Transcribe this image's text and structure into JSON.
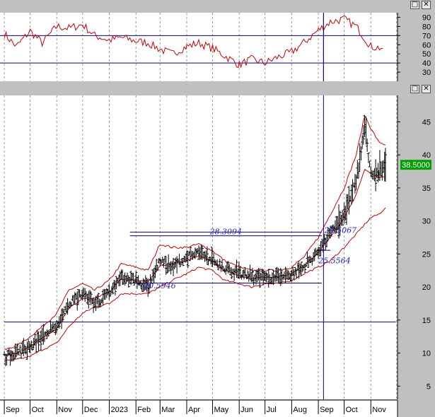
{
  "window": {
    "buttons": [
      {
        "pane": "rsi",
        "kind": "restore",
        "glyph": "□"
      },
      {
        "pane": "rsi",
        "kind": "close",
        "glyph": "✕"
      },
      {
        "pane": "price",
        "kind": "restore",
        "glyph": "□"
      },
      {
        "pane": "price",
        "kind": "close",
        "glyph": "✕"
      }
    ]
  },
  "colors": {
    "background": "#ffffff",
    "frame": "#c0c0c0",
    "price_bars": "#000000",
    "bands": "#cc0000",
    "rsi_line": "#cc0000",
    "horizontal_lines": "#000099",
    "annotation_text": "#2222cc",
    "last_price_bg": "#00a000",
    "last_price_text": "#ffffff",
    "month_gridlines": "#9a9a9a"
  },
  "chart_data": [
    {
      "type": "line",
      "indicator": "RSI",
      "ylim": [
        20,
        95
      ],
      "y_ticks": [
        30,
        40,
        50,
        60,
        70,
        80,
        90
      ],
      "reference_levels": [
        40,
        70
      ],
      "grid": "vertical dashed monthly",
      "series": [
        {
          "x": [
            "2022-09-01",
            "2022-09-15",
            "2022-10-01",
            "2022-10-15",
            "2022-11-01",
            "2022-11-15",
            "2022-12-01",
            "2022-12-15",
            "2023-01-01",
            "2023-01-15",
            "2023-02-01",
            "2023-02-15",
            "2023-03-01",
            "2023-03-15",
            "2023-04-01",
            "2023-04-15",
            "2023-05-01",
            "2023-05-15",
            "2023-06-01",
            "2023-06-15",
            "2023-07-01",
            "2023-07-15",
            "2023-08-01",
            "2023-08-15",
            "2023-09-01",
            "2023-09-15",
            "2023-10-01",
            "2023-10-15",
            "2023-11-01",
            "2023-11-15"
          ],
          "values": [
            72,
            58,
            75,
            62,
            80,
            78,
            82,
            70,
            65,
            68,
            64,
            62,
            55,
            50,
            58,
            62,
            56,
            48,
            38,
            44,
            40,
            46,
            52,
            62,
            76,
            85,
            88,
            80,
            58,
            56
          ]
        }
      ]
    },
    {
      "type": "candlestick",
      "ylim": [
        3,
        49
      ],
      "y_ticks": [
        5,
        10,
        15,
        20,
        25,
        30,
        35,
        40,
        45
      ],
      "x_tick_labels": [
        "Sep",
        "Oct",
        "Nov",
        "Dec",
        "2023",
        "Feb",
        "Mar",
        "Apr",
        "May",
        "Jun",
        "Jul",
        "Aug",
        "Sep",
        "Oct",
        "Nov"
      ],
      "grid": "vertical dashed monthly",
      "last_price": "38.5000",
      "price_path": {
        "x": [
          "2022-09-01",
          "2022-09-15",
          "2022-10-01",
          "2022-10-15",
          "2022-11-01",
          "2022-11-15",
          "2022-12-01",
          "2022-12-15",
          "2023-01-01",
          "2023-01-15",
          "2023-02-01",
          "2023-02-15",
          "2023-03-01",
          "2023-03-15",
          "2023-04-01",
          "2023-04-15",
          "2023-05-01",
          "2023-05-15",
          "2023-06-01",
          "2023-06-15",
          "2023-07-01",
          "2023-07-15",
          "2023-08-01",
          "2023-08-15",
          "2023-09-01",
          "2023-09-15",
          "2023-10-01",
          "2023-10-15",
          "2023-10-25",
          "2023-11-01",
          "2023-11-10",
          "2023-11-18"
        ],
        "values": [
          9.5,
          10.0,
          11.0,
          12.5,
          14.0,
          17.5,
          19.0,
          17.5,
          19.0,
          21.5,
          21.0,
          20.0,
          24.0,
          23.0,
          24.5,
          25.0,
          24.0,
          23.0,
          22.0,
          21.5,
          21.5,
          21.5,
          22.0,
          23.0,
          25.5,
          28.0,
          31.0,
          36.0,
          44.0,
          37.0,
          37.5,
          38.5
        ]
      },
      "bands": {
        "upper": [
          10.5,
          11.0,
          12.5,
          14.0,
          16.0,
          19.5,
          20.5,
          19.5,
          21.0,
          23.5,
          23.0,
          22.5,
          26.5,
          26.0,
          26.0,
          26.5,
          25.5,
          24.0,
          23.0,
          22.5,
          22.5,
          22.5,
          23.0,
          24.5,
          27.5,
          31.0,
          35.0,
          40.0,
          46.0,
          44.0,
          42.0,
          41.5
        ],
        "lower": [
          8.8,
          9.0,
          9.5,
          10.5,
          11.5,
          14.0,
          16.0,
          17.0,
          17.5,
          19.0,
          19.0,
          19.0,
          20.0,
          21.0,
          22.0,
          23.0,
          22.5,
          21.0,
          20.5,
          20.0,
          20.5,
          20.5,
          21.0,
          22.0,
          23.0,
          24.0,
          26.0,
          28.0,
          29.5,
          30.5,
          31.0,
          32.0
        ]
      },
      "horizontal_levels": [
        {
          "value": 28.3094,
          "label": "28.3094",
          "from": "2023-01-25",
          "to": "2023-09-05"
        },
        {
          "value": 27.75,
          "label": "",
          "from": "2023-01-25",
          "to": "2023-09-05"
        },
        {
          "value": 20.5946,
          "label": "20.5946",
          "from": "2023-01-25",
          "to": "2023-09-05"
        },
        {
          "value": 25.5564,
          "label": "25.5564",
          "from": "2023-09-01",
          "to": "2023-09-15"
        },
        {
          "value": 14.7,
          "label": "",
          "from": "2022-09-01",
          "to": "2023-11-30"
        }
      ],
      "annotations": [
        {
          "text": "29.5067",
          "x": "2023-09-08",
          "y": 28.2
        },
        {
          "text": "25.5564",
          "x": "2023-09-01",
          "y": 23.6
        },
        {
          "text": "20.5946",
          "x": "2023-02-10",
          "y": 19.8
        }
      ],
      "cursor_date": "2023-09-07"
    }
  ]
}
